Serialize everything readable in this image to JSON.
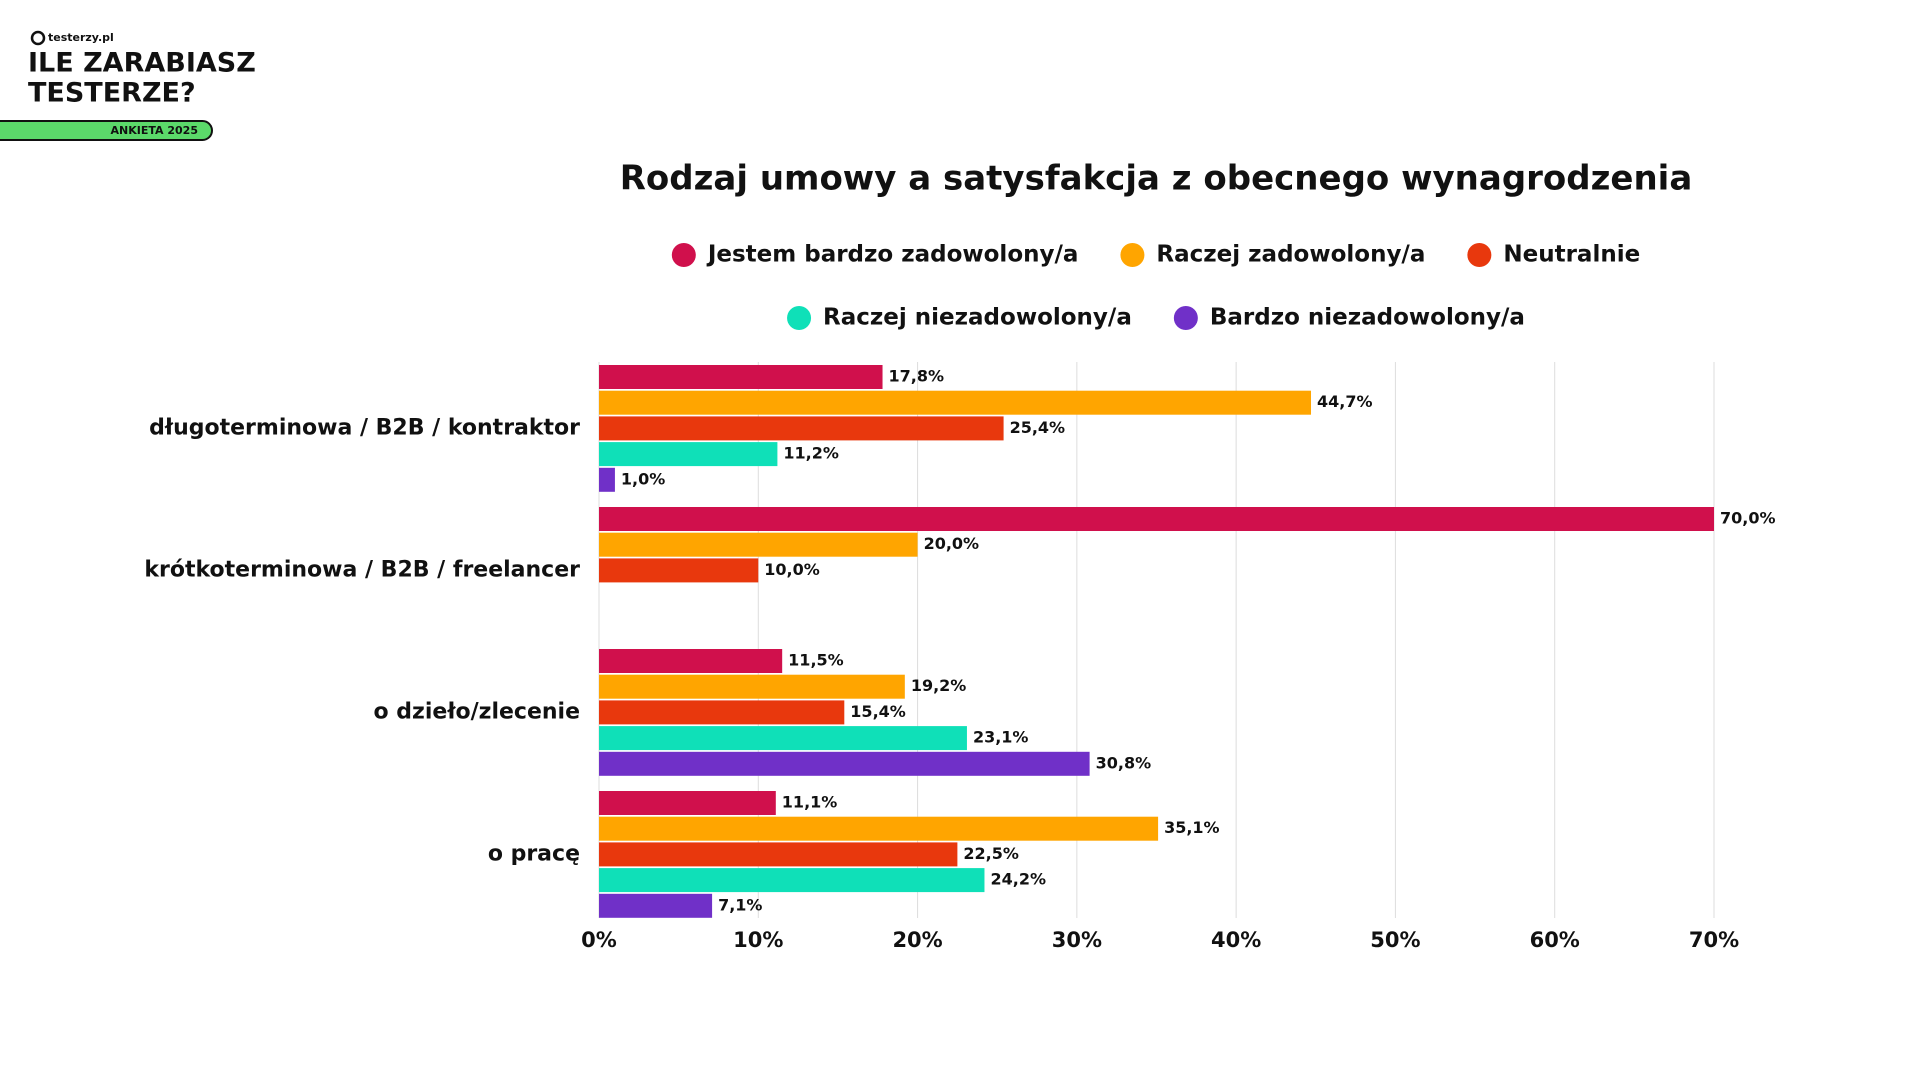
{
  "branding": {
    "site": "testerzy.pl",
    "title_line1": "ILE ZARABIASZ",
    "title_line2": "TESTERZE?",
    "badge": "ANKIETA 2025"
  },
  "chart_data": {
    "type": "hbar",
    "title": "Rodzaj umowy a satysfakcja z obecnego wynagrodzenia",
    "categories": [
      "długoterminowa / B2B / kontraktor",
      "krótkoterminowa / B2B / freelancer",
      "o dzieło/zlecenie",
      "o pracę"
    ],
    "series": [
      {
        "name": "Jestem bardzo zadowolony/a",
        "color": "#d0104c",
        "values": [
          17.8,
          70.0,
          11.5,
          11.1
        ],
        "value_labels": [
          "17,8%",
          "70,0%",
          "11,5%",
          "11,1%"
        ]
      },
      {
        "name": "Raczej zadowolony/a",
        "color": "#ffa500",
        "values": [
          44.7,
          20.0,
          19.2,
          35.1
        ],
        "value_labels": [
          "44,7%",
          "20,0%",
          "19,2%",
          "35,1%"
        ]
      },
      {
        "name": "Neutralnie",
        "color": "#e8380d",
        "values": [
          25.4,
          10.0,
          15.4,
          22.5
        ],
        "value_labels": [
          "25,4%",
          "10,0%",
          "15,4%",
          "22,5%"
        ]
      },
      {
        "name": "Raczej niezadowolony/a",
        "color": "#0fe0b8",
        "values": [
          11.2,
          null,
          23.1,
          24.2
        ],
        "value_labels": [
          "11,2%",
          null,
          "23,1%",
          "24,2%"
        ]
      },
      {
        "name": "Bardzo niezadowolony/a",
        "color": "#7030c8",
        "values": [
          1.0,
          null,
          30.8,
          7.1
        ],
        "value_labels": [
          "1,0%",
          null,
          "30,8%",
          "7,1%"
        ]
      }
    ],
    "xlim": [
      0,
      70
    ],
    "xticks": [
      {
        "value": 0,
        "label": "0%"
      },
      {
        "value": 10,
        "label": "10%"
      },
      {
        "value": 20,
        "label": "20%"
      },
      {
        "value": 30,
        "label": "30%"
      },
      {
        "value": 40,
        "label": "40%"
      },
      {
        "value": 50,
        "label": "50%"
      },
      {
        "value": 60,
        "label": "60%"
      },
      {
        "value": 70,
        "label": "70%"
      }
    ],
    "grid": true
  }
}
